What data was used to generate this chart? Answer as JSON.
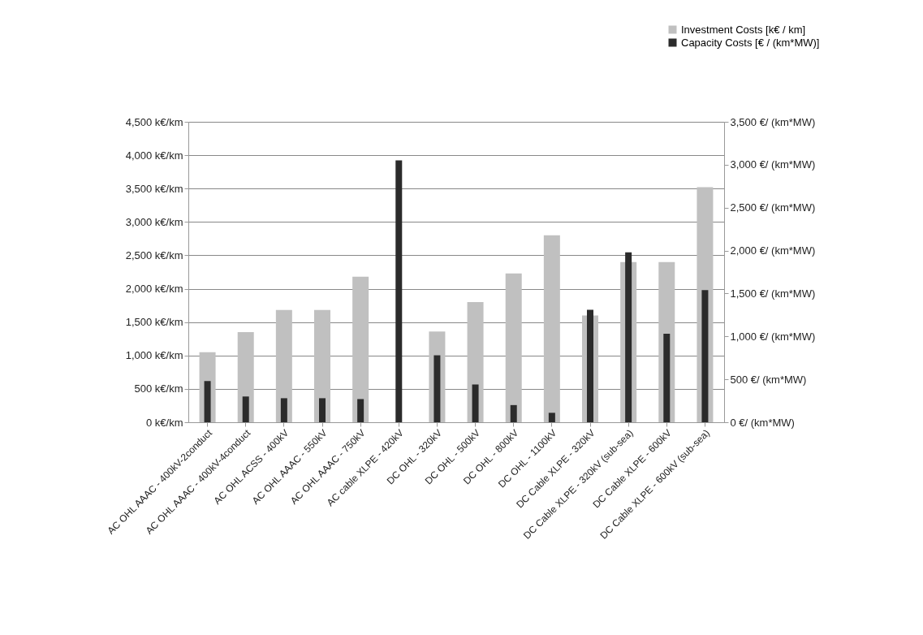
{
  "chart_data": {
    "type": "bar",
    "categories": [
      "AC OHL  AAAC - 400kV-2conduct",
      "AC OHL  AAAC - 400kV-4conduct",
      "AC OHL  ACSS - 400kV",
      "AC OHL  AAAC - 550kV",
      "AC OHL  AAAC - 750kV",
      "AC cable XLPE - 420kV",
      "DC OHL - 320kV",
      "DC OHL - 500kV",
      "DC OHL - 800kV",
      "DC OHL - 1100kV",
      "DC Cable XLPE - 320kV",
      "DC Cable XLPE - 320kV (sub-sea)",
      "DC Cable XLPE - 600kV",
      "DC Cable XLPE - 600kV  (sub-sea)"
    ],
    "series": [
      {
        "name": "Investment Costs [k€ / km]",
        "color": "#c0c0c0",
        "values": [
          1050,
          1350,
          1680,
          1680,
          2180,
          null,
          1360,
          1800,
          2230,
          2800,
          1600,
          2400,
          2400,
          3520
        ]
      },
      {
        "name": "Capacity Costs [€ / (km*MW)]",
        "color": "#2b2b2b",
        "axis": "y2",
        "values": [
          480,
          300,
          280,
          280,
          270,
          3050,
          780,
          440,
          200,
          110,
          1310,
          1980,
          1030,
          1540
        ]
      }
    ],
    "ylim": [
      0,
      4500
    ],
    "yticks": [
      {
        "value": 0,
        "label": "0 k€/km"
      },
      {
        "value": 500,
        "label": "500 k€/km"
      },
      {
        "value": 1000,
        "label": "1,000 k€/km"
      },
      {
        "value": 1500,
        "label": "1,500 k€/km"
      },
      {
        "value": 2000,
        "label": "2,000 k€/km"
      },
      {
        "value": 2500,
        "label": "2,500 k€/km"
      },
      {
        "value": 3000,
        "label": "3,000 k€/km"
      },
      {
        "value": 3500,
        "label": "3,500 k€/km"
      },
      {
        "value": 4000,
        "label": "4,000 k€/km"
      },
      {
        "value": 4500,
        "label": "4,500 k€/km"
      }
    ],
    "y2lim": [
      0,
      3500
    ],
    "y2ticks": [
      {
        "value": 0,
        "label": "0 €/ (km*MW)"
      },
      {
        "value": 500,
        "label": "500 €/ (km*MW)"
      },
      {
        "value": 1000,
        "label": "1,000 €/ (km*MW)"
      },
      {
        "value": 1500,
        "label": "1,500 €/ (km*MW)"
      },
      {
        "value": 2000,
        "label": "2,000 €/ (km*MW)"
      },
      {
        "value": 2500,
        "label": "2,500 €/ (km*MW)"
      },
      {
        "value": 3000,
        "label": "3,000 €/ (km*MW)"
      },
      {
        "value": 3500,
        "label": "3,500 €/ (km*MW)"
      }
    ],
    "grid": "y",
    "legend": "top right"
  }
}
